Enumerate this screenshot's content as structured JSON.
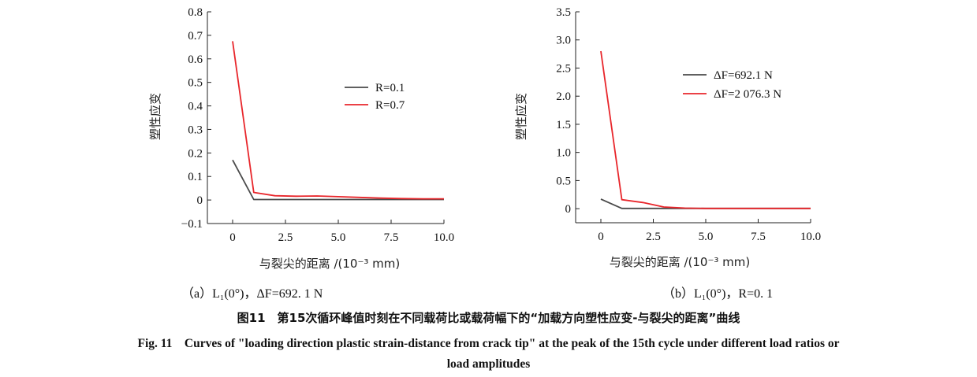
{
  "chart_data": [
    {
      "type": "line",
      "panel_label": "（a）L₁(0°)，ΔF=692. 1 N",
      "xlabel": "与裂尖的距离 /(10⁻³ mm)",
      "ylabel": "塑性应变",
      "xlim": [
        0,
        10
      ],
      "ylim": [
        -0.1,
        0.8
      ],
      "x_ticks": [
        "0",
        "2.5",
        "5.0",
        "7.5",
        "10.0"
      ],
      "y_ticks": [
        "−0.1",
        "0",
        "0.1",
        "0.2",
        "0.3",
        "0.4",
        "0.5",
        "0.6",
        "0.7",
        "0.8"
      ],
      "legend_position": "upper-right",
      "series": [
        {
          "name": "R=0.1",
          "color": "#4a4a4a",
          "x": [
            0,
            1,
            2,
            3,
            4,
            5,
            6,
            7,
            8,
            9,
            10
          ],
          "y": [
            0.17,
            0.002,
            0.002,
            0.002,
            0.002,
            0.002,
            0.002,
            0.002,
            0.002,
            0.002,
            0.002
          ]
        },
        {
          "name": "R=0.7",
          "color": "#e8262b",
          "x": [
            0,
            1,
            2,
            3,
            4,
            5,
            6,
            7,
            8,
            9,
            10
          ],
          "y": [
            0.675,
            0.032,
            0.018,
            0.016,
            0.017,
            0.014,
            0.011,
            0.008,
            0.006,
            0.005,
            0.005
          ]
        }
      ]
    },
    {
      "type": "line",
      "panel_label": "（b）L₁(0°)，R=0. 1",
      "xlabel": "与裂尖的距离 /(10⁻³ mm)",
      "ylabel": "塑性应变",
      "xlim": [
        0,
        10
      ],
      "ylim": [
        -0.25,
        3.5
      ],
      "x_ticks": [
        "0",
        "2.5",
        "5.0",
        "7.5",
        "10.0"
      ],
      "y_ticks": [
        "0",
        "0.5",
        "1.0",
        "1.5",
        "2.0",
        "2.5",
        "3.0",
        "3.5"
      ],
      "legend_position": "upper-right",
      "series": [
        {
          "name": "ΔF=692.1 N",
          "color": "#4a4a4a",
          "x": [
            0,
            1,
            2,
            3,
            4,
            5,
            6,
            7,
            8,
            9,
            10
          ],
          "y": [
            0.17,
            0.005,
            0.005,
            0.005,
            0.005,
            0.005,
            0.005,
            0.005,
            0.005,
            0.005,
            0.005
          ]
        },
        {
          "name": "ΔF=2 076.3 N",
          "color": "#e8262b",
          "x": [
            0,
            1,
            2,
            3,
            4,
            5,
            6,
            7,
            8,
            9,
            10
          ],
          "y": [
            2.8,
            0.16,
            0.11,
            0.03,
            0.01,
            0.005,
            0.005,
            0.005,
            0.005,
            0.005,
            0.005
          ]
        }
      ]
    }
  ],
  "caption": {
    "chinese": "图11　第15次循环峰值时刻在不同载荷比或载荷幅下的“加载方向塑性应变-与裂尖的距离”曲线",
    "english_line1": "Fig. 11　Curves of \"loading direction plastic strain-distance from crack tip\" at the peak of the 15th cycle under different load ratios or",
    "english_line2": "load amplitudes"
  }
}
